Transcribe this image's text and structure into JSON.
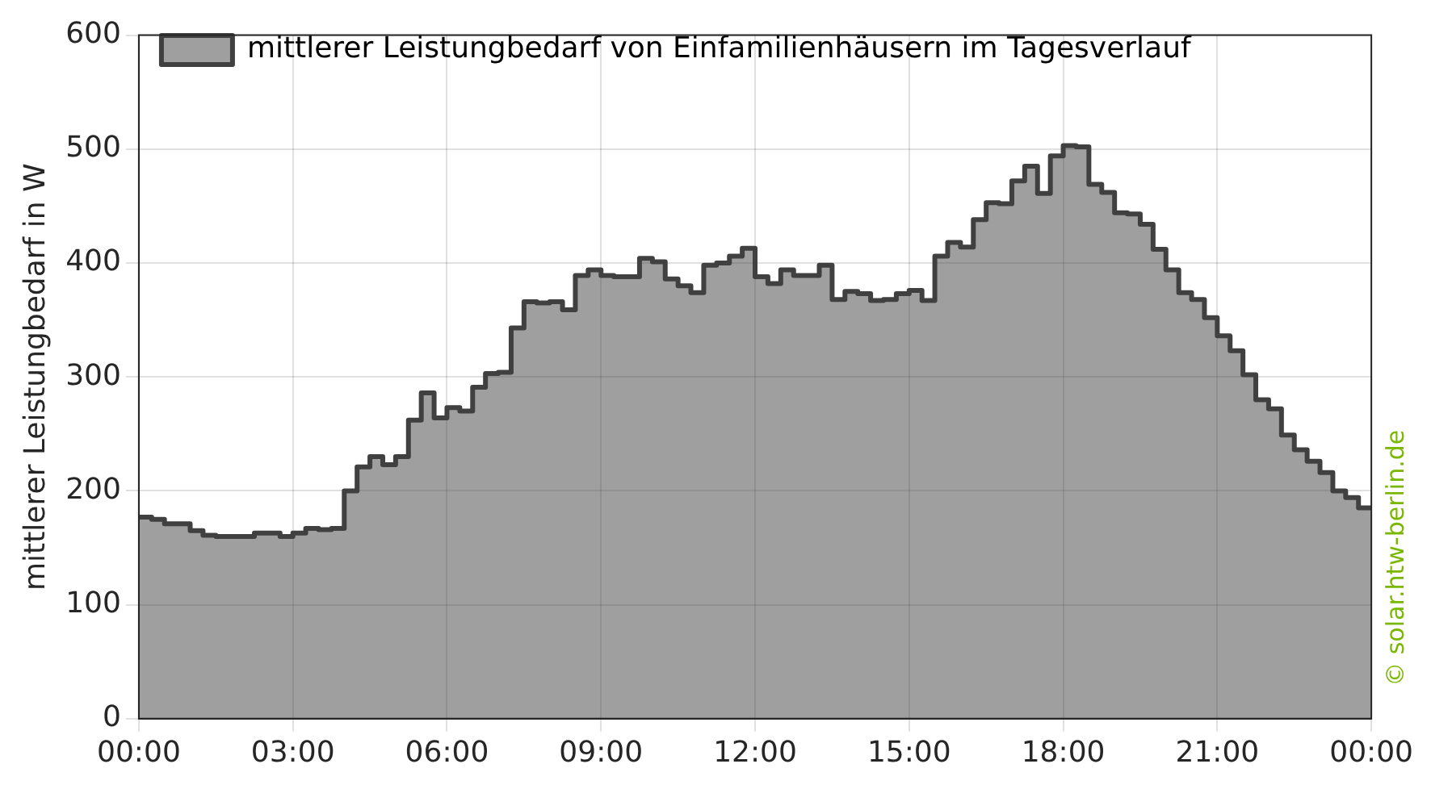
{
  "chart_data": {
    "type": "area",
    "ylabel": "mittlerer Leistungbedarf in W",
    "x": [
      0,
      0.25,
      0.25,
      0.5,
      0.5,
      0.75,
      0.75,
      1,
      1,
      1.25,
      1.25,
      1.5,
      1.5,
      1.75,
      1.75,
      2,
      2,
      2.25,
      2.25,
      2.5,
      2.5,
      2.75,
      2.75,
      3,
      3,
      3.25,
      3.25,
      3.5,
      3.5,
      3.75,
      3.75,
      4,
      4,
      4.25,
      4.25,
      4.5,
      4.5,
      4.75,
      4.75,
      5,
      5,
      5.25,
      5.25,
      5.5,
      5.5,
      5.75,
      5.75,
      6,
      6,
      6.25,
      6.25,
      6.5,
      6.5,
      6.75,
      6.75,
      7,
      7,
      7.25,
      7.25,
      7.5,
      7.5,
      7.75,
      7.75,
      8,
      8,
      8.25,
      8.25,
      8.5,
      8.5,
      8.75,
      8.75,
      9,
      9,
      9.25,
      9.25,
      9.5,
      9.5,
      9.75,
      9.75,
      10,
      10,
      10.25,
      10.25,
      10.5,
      10.5,
      10.75,
      10.75,
      11,
      11,
      11.25,
      11.25,
      11.5,
      11.5,
      11.75,
      11.75,
      12,
      12,
      12.25,
      12.25,
      12.5,
      12.5,
      12.75,
      12.75,
      13,
      13,
      13.25,
      13.25,
      13.5,
      13.5,
      13.75,
      13.75,
      14,
      14,
      14.25,
      14.25,
      14.5,
      14.5,
      14.75,
      14.75,
      15,
      15,
      15.25,
      15.25,
      15.5,
      15.5,
      15.75,
      15.75,
      16,
      16,
      16.25,
      16.25,
      16.5,
      16.5,
      16.75,
      16.75,
      17,
      17,
      17.25,
      17.25,
      17.5,
      17.5,
      17.75,
      17.75,
      18,
      18,
      18.25,
      18.25,
      18.5,
      18.5,
      18.75,
      18.75,
      19,
      19,
      19.25,
      19.25,
      19.5,
      19.5,
      19.75,
      19.75,
      20,
      20,
      20.25,
      20.25,
      20.5,
      20.5,
      20.75,
      20.75,
      21,
      21,
      21.25,
      21.25,
      21.5,
      21.5,
      21.75,
      21.75,
      22,
      22,
      22.25,
      22.25,
      22.5,
      22.5,
      22.75,
      22.75,
      23,
      23,
      23.25,
      23.25,
      23.5,
      23.5,
      23.75,
      23.75,
      24
    ],
    "series": [
      {
        "name": "mittlerer Leistungbedarf von Einfamilienhäusern im Tagesverlauf",
        "color": "#404040",
        "values": [
          177,
          177,
          175,
          175,
          171,
          171,
          171,
          171,
          165,
          165,
          161,
          161,
          160,
          160,
          160,
          160,
          160,
          160,
          163,
          163,
          163,
          163,
          160,
          160,
          163,
          163,
          167,
          167,
          166,
          166,
          167,
          167,
          200,
          200,
          221,
          221,
          230,
          230,
          223,
          223,
          230,
          230,
          262,
          262,
          286,
          286,
          264,
          264,
          273,
          273,
          270,
          270,
          291,
          291,
          303,
          303,
          304,
          304,
          343,
          343,
          366,
          366,
          365,
          365,
          366,
          366,
          359,
          359,
          389,
          389,
          394,
          394,
          389,
          389,
          388,
          388,
          388,
          388,
          404,
          404,
          401,
          401,
          386,
          386,
          380,
          380,
          374,
          374,
          398,
          398,
          400,
          400,
          406,
          406,
          413,
          413,
          388,
          388,
          382,
          382,
          394,
          394,
          389,
          389,
          389,
          389,
          398,
          398,
          368,
          368,
          375,
          375,
          373,
          373,
          367,
          367,
          368,
          368,
          373,
          373,
          376,
          376,
          367,
          367,
          406,
          406,
          418,
          418,
          414,
          414,
          438,
          438,
          453,
          453,
          452,
          452,
          472,
          472,
          485,
          485,
          461,
          461,
          494,
          494,
          503,
          503,
          502,
          502,
          469,
          469,
          462,
          462,
          444,
          444,
          443,
          443,
          434,
          434,
          412,
          412,
          394,
          394,
          374,
          374,
          368,
          368,
          352,
          352,
          336,
          336,
          323,
          323,
          302,
          302,
          280,
          280,
          272,
          272,
          249,
          249,
          236,
          236,
          226,
          226,
          216,
          216,
          200,
          200,
          194,
          194,
          185,
          185
        ]
      }
    ],
    "xlim": [
      0,
      24
    ],
    "xticks": [
      {
        "value": 0,
        "label": "00:00"
      },
      {
        "value": 3,
        "label": "03:00"
      },
      {
        "value": 6,
        "label": "06:00"
      },
      {
        "value": 9,
        "label": "09:00"
      },
      {
        "value": 12,
        "label": "12:00"
      },
      {
        "value": 15,
        "label": "15:00"
      },
      {
        "value": 18,
        "label": "18:00"
      },
      {
        "value": 21,
        "label": "21:00"
      },
      {
        "value": 24,
        "label": "00:00"
      }
    ],
    "ylim": [
      0,
      600
    ],
    "yticks": [
      0,
      100,
      200,
      300,
      400,
      500,
      600
    ],
    "grid": true,
    "legend": "top left",
    "annotations": [
      "© solar.htw-berlin.de"
    ]
  }
}
